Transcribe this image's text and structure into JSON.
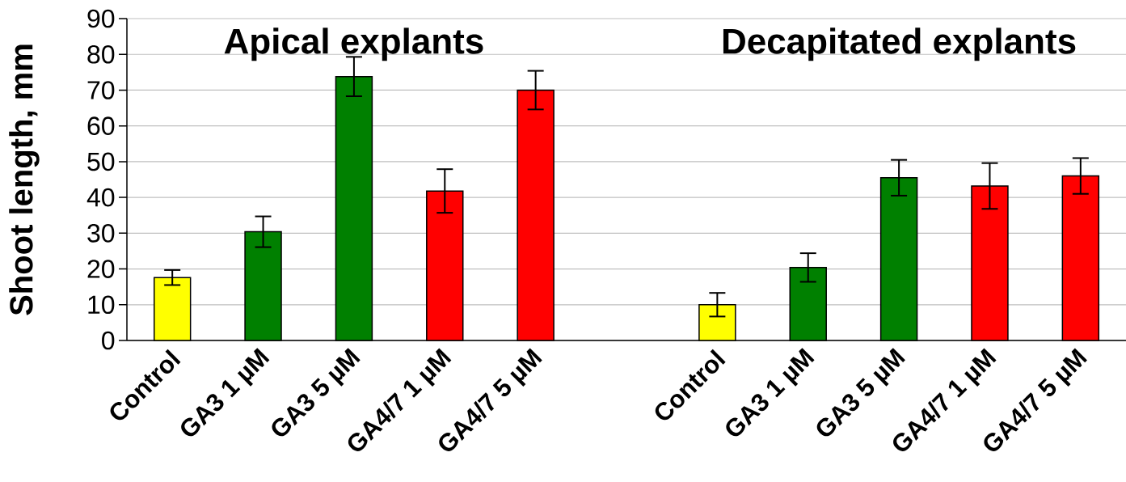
{
  "chart_data": {
    "type": "bar",
    "ylabel": "Shoot length, mm",
    "annotations": [
      "Apical explants",
      "Decapitated explants"
    ],
    "categories": [
      "Control",
      "GA3 1 µM",
      "GA3 5 µM",
      "GA4/7 1 µM",
      "GA4/7 5 µM",
      null,
      "Control",
      "GA3 1 µM",
      "GA3 5 µM",
      "GA4/7 1 µM",
      "GA4/7 5 µM"
    ],
    "values": [
      17.6,
      30.4,
      73.8,
      41.8,
      70.0,
      null,
      10.0,
      20.4,
      45.5,
      43.2,
      46.0
    ],
    "errors": [
      2.1,
      4.3,
      5.5,
      6.1,
      5.4,
      null,
      3.3,
      4.0,
      5.0,
      6.4,
      5.0
    ],
    "colors": [
      "#ffff00",
      "#008000",
      "#008000",
      "#ff0000",
      "#ff0000",
      null,
      "#ffff00",
      "#008000",
      "#008000",
      "#ff0000",
      "#ff0000"
    ],
    "ylim": [
      0,
      90
    ],
    "yticks": [
      0,
      10,
      20,
      30,
      40,
      50,
      60,
      70,
      80,
      90
    ],
    "grid": "y"
  }
}
